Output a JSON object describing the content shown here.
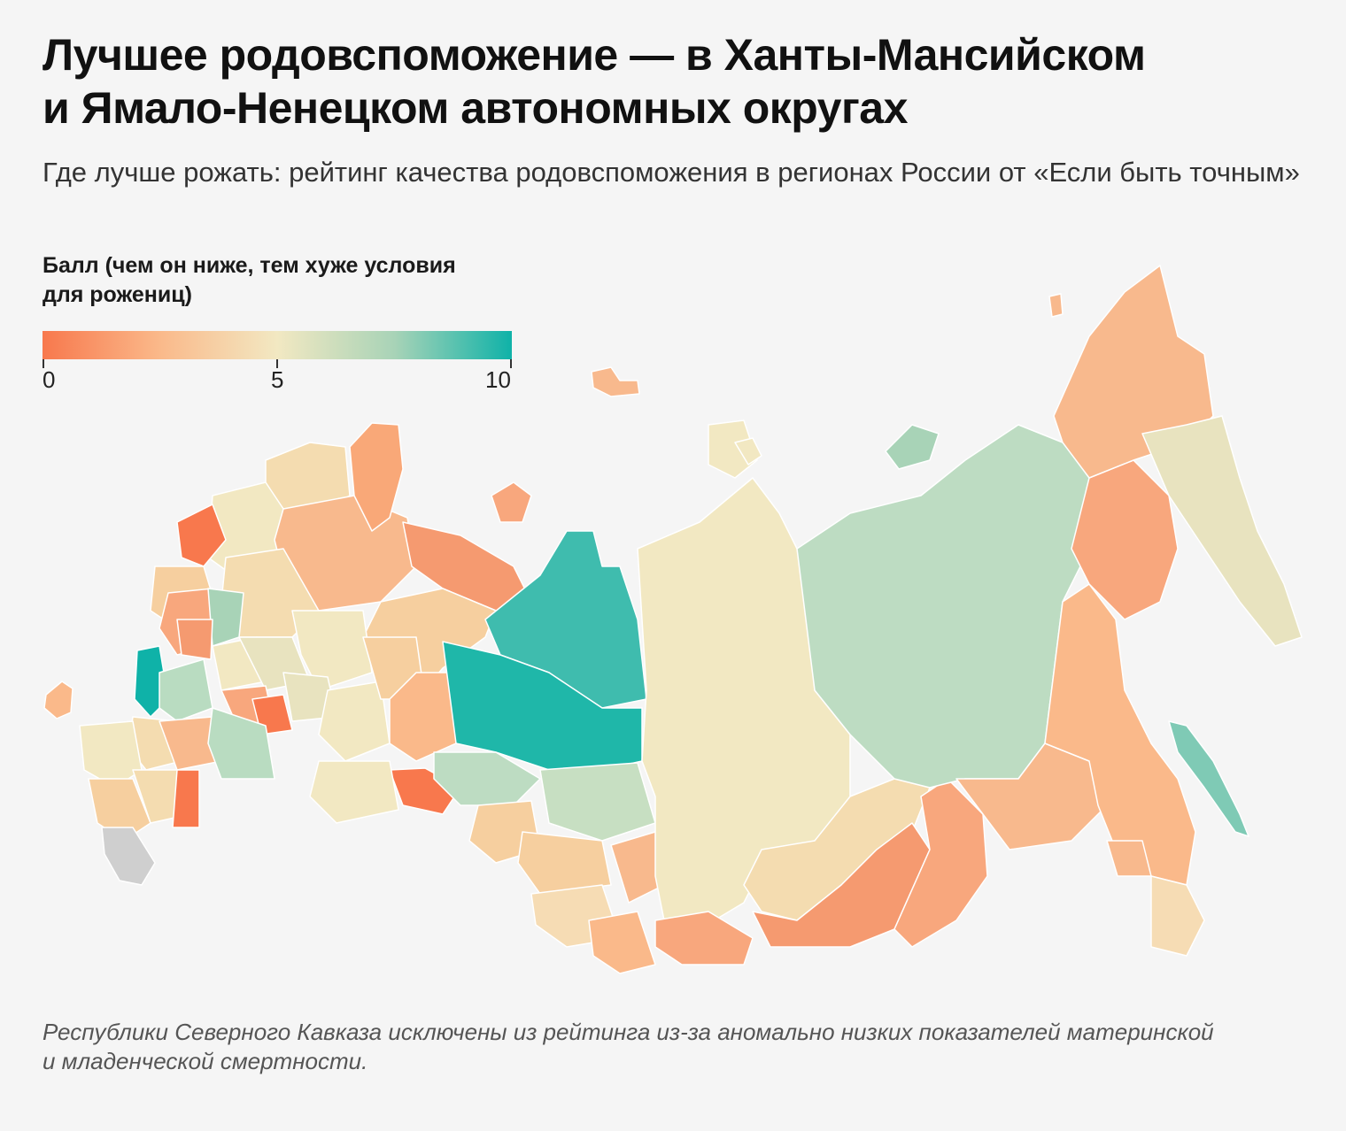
{
  "title": {
    "line1": "Лучшее родовспоможение — в Ханты-Мансийском",
    "line2": "и Ямало-Ненецком автономных округах"
  },
  "subtitle": "Где лучше рожать: рейтинг качества родовспоможения в регионах России от «Если быть точным»",
  "legend": {
    "title_line1": "Балл (чем он ниже, тем хуже условия",
    "title_line2": "для рожениц)",
    "ticks": [
      "0",
      "5",
      "10"
    ],
    "range": [
      0,
      10
    ],
    "colors": [
      "#f8784d",
      "#fab98a",
      "#f2e8c2",
      "#a8d3b7",
      "#0fb2a8"
    ]
  },
  "colors": {
    "excluded": "#cfcfcf",
    "border": "#ffffff",
    "background": "#f5f5f5"
  },
  "note": {
    "line1": "Республики Северного Кавказа исключены из рейтинга из-за аномально низких показателей материнской",
    "line2": "и младенческой смертности."
  }
}
